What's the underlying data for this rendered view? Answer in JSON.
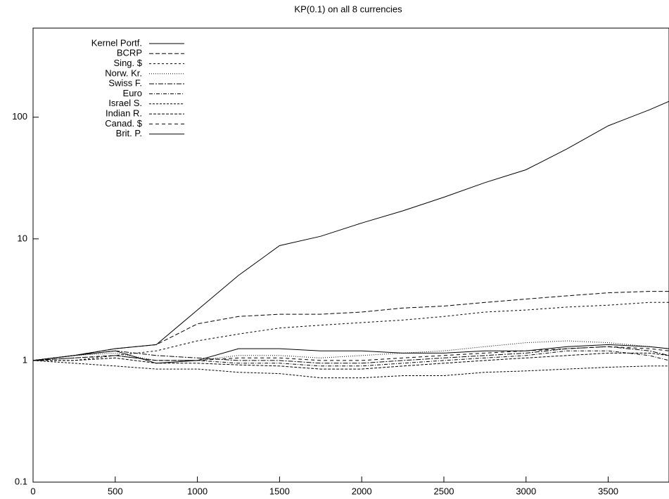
{
  "chart_data": {
    "type": "line",
    "title": "KP(0.1) on all 8 currencies",
    "x": [
      0,
      250,
      500,
      750,
      1000,
      1250,
      1500,
      1750,
      2000,
      2250,
      2500,
      2750,
      3000,
      3250,
      3500,
      3750,
      3870
    ],
    "xlim": [
      0,
      3870
    ],
    "xticks": [
      0,
      500,
      1000,
      1500,
      2000,
      2500,
      3000,
      3500
    ],
    "ylim": [
      0.1,
      540
    ],
    "yticks": [
      0.1,
      1,
      10,
      100
    ],
    "log_y": true,
    "grid": false,
    "legend": "top-left",
    "series": [
      {
        "name": "Kernel Portf.",
        "color": "#000000",
        "dash": "none",
        "values": [
          1,
          1.1,
          1.25,
          1.35,
          2.6,
          5,
          8.8,
          10.5,
          13.5,
          17,
          22,
          29,
          37,
          55,
          85,
          115,
          135
        ]
      },
      {
        "name": "BCRP",
        "color": "#000000",
        "dash": "6,3",
        "values": [
          1,
          1.1,
          1.25,
          1.35,
          2,
          2.3,
          2.4,
          2.4,
          2.5,
          2.7,
          2.8,
          3,
          3.2,
          3.4,
          3.6,
          3.7,
          3.7
        ]
      },
      {
        "name": "Sing. $",
        "color": "#000000",
        "dash": "3,3",
        "values": [
          1,
          1,
          1.1,
          1.2,
          1.45,
          1.65,
          1.85,
          1.95,
          2.05,
          2.15,
          2.3,
          2.5,
          2.6,
          2.75,
          2.85,
          3,
          3
        ]
      },
      {
        "name": "Norw. Kr.",
        "color": "#000000",
        "dash": "1,2",
        "values": [
          1,
          1.1,
          1.15,
          1,
          1,
          1.1,
          1.1,
          1.05,
          1.1,
          1.15,
          1.2,
          1.3,
          1.4,
          1.45,
          1.4,
          1.3,
          1.25
        ]
      },
      {
        "name": "Swiss F.",
        "color": "#000000",
        "dash": "7,2,2,2",
        "values": [
          1,
          1.1,
          1.2,
          1.1,
          1.05,
          1,
          1,
          0.95,
          0.95,
          1,
          1.05,
          1.1,
          1.15,
          1.25,
          1.3,
          1.2,
          1.1
        ]
      },
      {
        "name": "Euro",
        "color": "#000000",
        "dash": "5,2,1,2",
        "values": [
          1,
          1.05,
          1.1,
          1,
          1,
          0.95,
          0.95,
          0.9,
          0.9,
          0.95,
          1,
          1.05,
          1.1,
          1.2,
          1.2,
          1.1,
          1
        ]
      },
      {
        "name": "Israel S.",
        "color": "#000000",
        "dash": "3,2",
        "values": [
          1,
          0.95,
          0.9,
          0.85,
          0.85,
          0.8,
          0.78,
          0.72,
          0.72,
          0.75,
          0.75,
          0.8,
          0.82,
          0.85,
          0.88,
          0.9,
          0.9
        ]
      },
      {
        "name": "Indian R.",
        "color": "#000000",
        "dash": "4,2",
        "values": [
          1,
          1,
          1.05,
          0.95,
          0.95,
          0.92,
          0.9,
          0.85,
          0.85,
          0.9,
          0.95,
          1,
          1.05,
          1.1,
          1.15,
          1.15,
          1.1
        ]
      },
      {
        "name": "Canad. $",
        "color": "#000000",
        "dash": "5,4",
        "values": [
          1,
          1.05,
          1.1,
          1,
          1,
          1.05,
          1.05,
          1,
          1,
          1.05,
          1.1,
          1.15,
          1.2,
          1.25,
          1.3,
          1.25,
          1.2
        ]
      },
      {
        "name": "Brit. P.",
        "color": "#000000",
        "dash": "none",
        "values": [
          1,
          1.1,
          1.2,
          0.95,
          1,
          1.25,
          1.25,
          1.2,
          1.2,
          1.15,
          1.15,
          1.2,
          1.2,
          1.3,
          1.35,
          1.3,
          1.25
        ]
      }
    ]
  }
}
